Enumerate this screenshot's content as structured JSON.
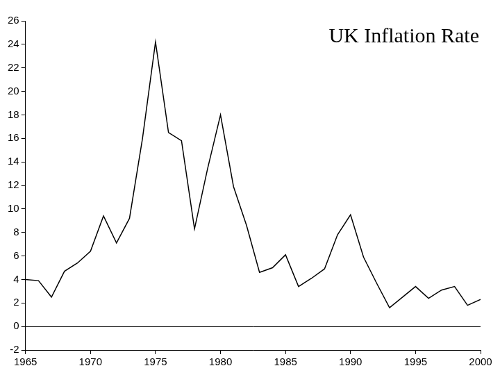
{
  "chart_data": {
    "type": "line",
    "title": "UK Inflation Rate",
    "x": [
      1965,
      1966,
      1967,
      1968,
      1969,
      1970,
      1971,
      1972,
      1973,
      1974,
      1975,
      1976,
      1977,
      1978,
      1979,
      1980,
      1981,
      1982,
      1983,
      1984,
      1985,
      1986,
      1987,
      1988,
      1989,
      1990,
      1991,
      1992,
      1993,
      1994,
      1995,
      1996,
      1997,
      1998,
      1999,
      2000
    ],
    "values": [
      4.0,
      3.9,
      2.5,
      4.7,
      5.4,
      6.4,
      9.4,
      7.1,
      9.2,
      16.0,
      24.2,
      16.5,
      15.8,
      8.3,
      13.4,
      18.0,
      11.9,
      8.6,
      4.6,
      5.0,
      6.1,
      3.4,
      4.1,
      4.9,
      7.8,
      9.5,
      5.9,
      3.7,
      1.6,
      2.5,
      3.4,
      2.4,
      3.1,
      3.4,
      1.8,
      2.3
    ],
    "color": "#000000",
    "xlim": [
      1965,
      2000
    ],
    "xticks": [
      1965,
      1970,
      1975,
      1980,
      1985,
      1990,
      1995,
      2000
    ],
    "ylim": [
      -2,
      26
    ],
    "yticks": [
      -2,
      0,
      2,
      4,
      6,
      8,
      10,
      12,
      14,
      16,
      18,
      20,
      22,
      24,
      26
    ],
    "grid": false
  }
}
